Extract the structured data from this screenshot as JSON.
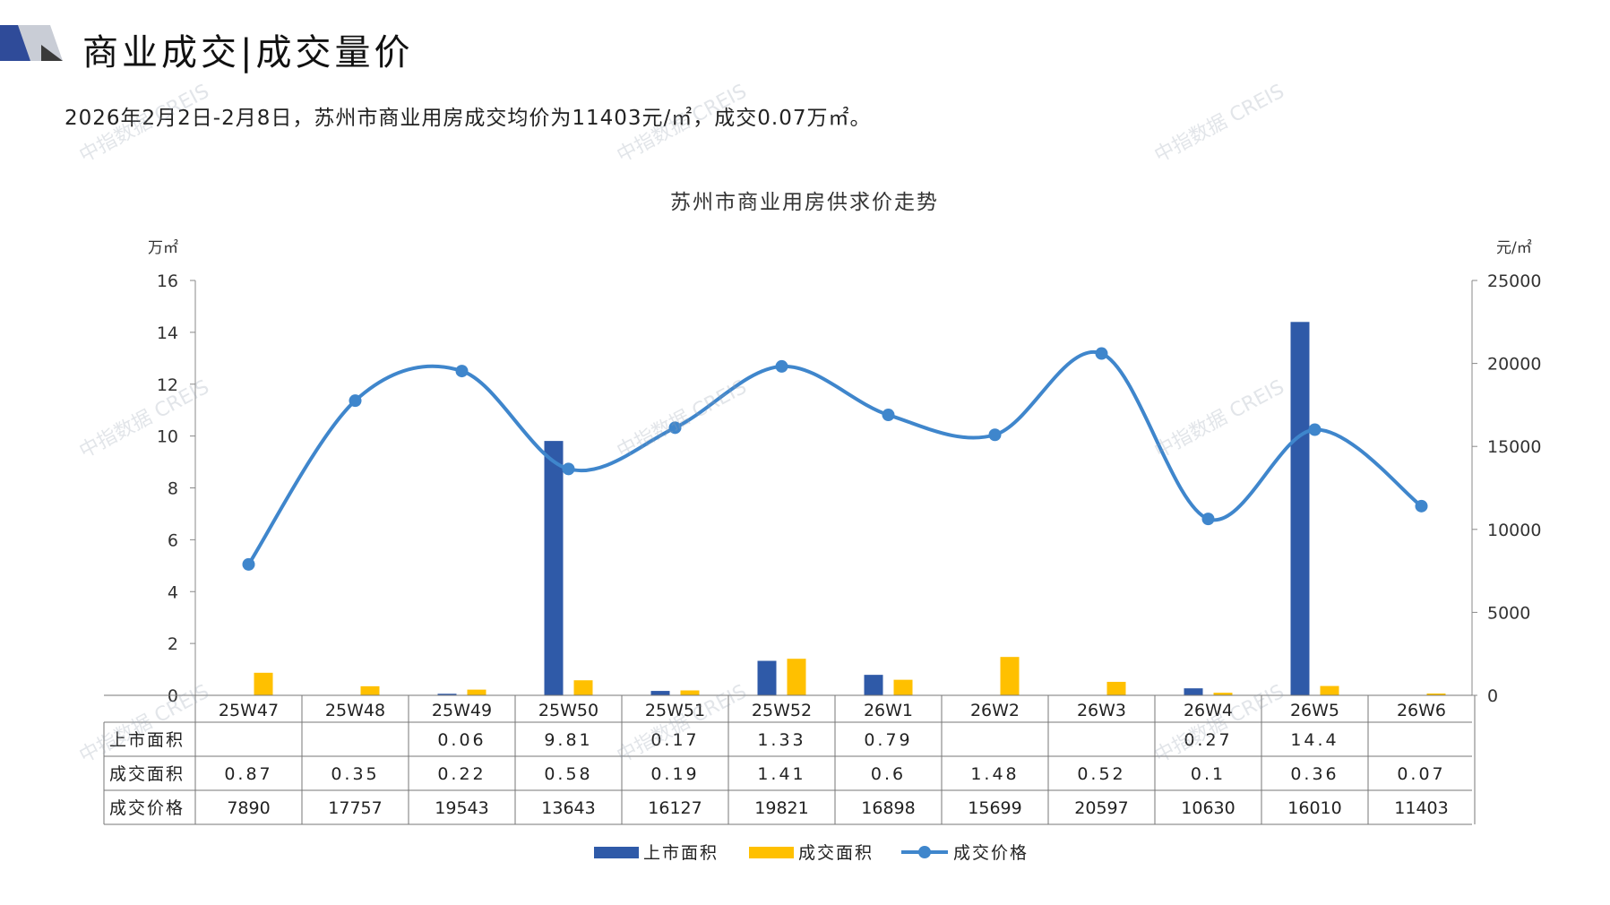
{
  "header": {
    "title": "商业成交|成交量价"
  },
  "summary": "2026年2月2日-2月8日，苏州市商业用房成交均价为11403元/㎡，成交0.07万㎡。",
  "watermark": "中指数据 CREIS",
  "colors": {
    "supply": "#2f5aa8",
    "deal_area": "#ffc000",
    "price": "#3f86cc",
    "header_navy": "#2f4b99"
  },
  "chart_data": {
    "type": "bar",
    "title": "苏州市商业用房供求价走势",
    "left_unit": "万㎡",
    "right_unit": "元/㎡",
    "categories": [
      "25W47",
      "25W48",
      "25W49",
      "25W50",
      "25W51",
      "25W52",
      "26W1",
      "26W2",
      "26W3",
      "26W4",
      "26W5",
      "26W6"
    ],
    "left_axis": {
      "min": 0,
      "max": 16,
      "ticks": [
        0,
        2,
        4,
        6,
        8,
        10,
        12,
        14,
        16
      ]
    },
    "right_axis": {
      "min": 0,
      "max": 25000,
      "ticks": [
        0,
        5000,
        10000,
        15000,
        20000,
        25000
      ]
    },
    "series": [
      {
        "name": "上市面积",
        "type": "bar",
        "axis": "left",
        "values": [
          null,
          null,
          0.06,
          9.81,
          0.17,
          1.33,
          0.79,
          null,
          null,
          0.27,
          14.4,
          null
        ],
        "table": [
          "",
          "",
          "0.06",
          "9.81",
          "0.17",
          "1.33",
          "0.79",
          "",
          "",
          "0.27",
          "14.4",
          ""
        ]
      },
      {
        "name": "成交面积",
        "type": "bar",
        "axis": "left",
        "values": [
          0.87,
          0.35,
          0.22,
          0.58,
          0.19,
          1.41,
          0.6,
          1.48,
          0.52,
          0.1,
          0.36,
          0.07
        ],
        "table": [
          "0.87",
          "0.35",
          "0.22",
          "0.58",
          "0.19",
          "1.41",
          "0.6",
          "1.48",
          "0.52",
          "0.1",
          "0.36",
          "0.07"
        ]
      },
      {
        "name": "成交价格",
        "type": "line",
        "axis": "right",
        "values": [
          7890,
          17757,
          19543,
          13643,
          16127,
          19821,
          16898,
          15699,
          20597,
          10630,
          16010,
          11403
        ],
        "table": [
          "7890",
          "17757",
          "19543",
          "13643",
          "16127",
          "19821",
          "16898",
          "15699",
          "20597",
          "10630",
          "16010",
          "11403"
        ]
      }
    ],
    "grid": false,
    "legend": "bottom"
  }
}
